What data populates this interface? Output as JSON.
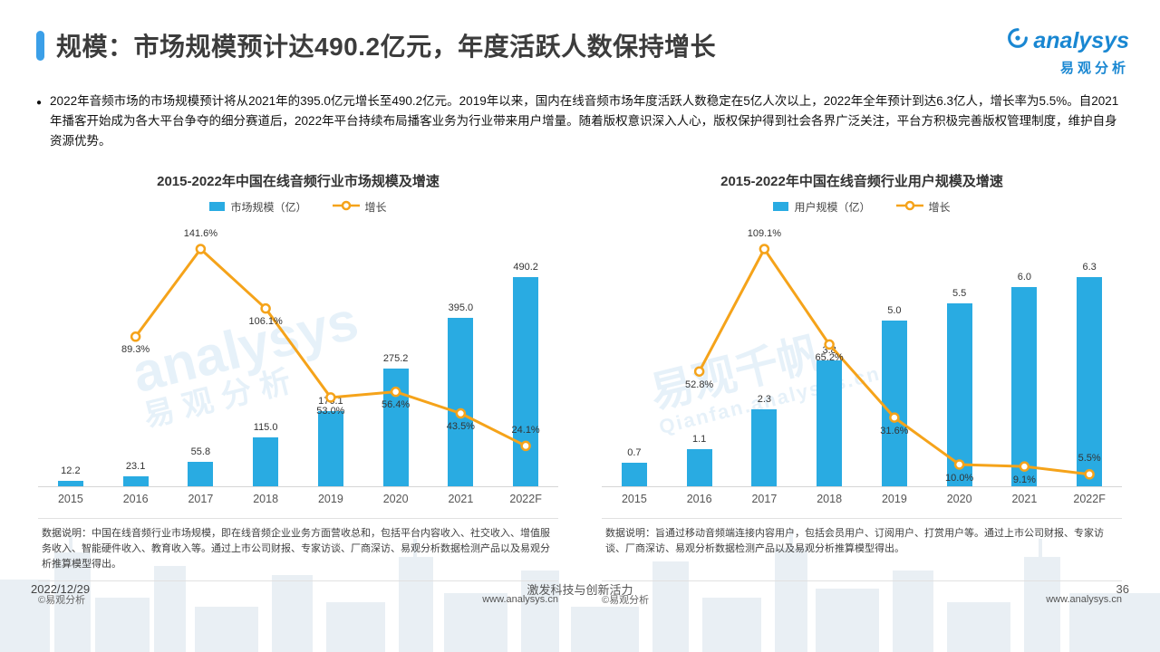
{
  "header": {
    "title": "规模：市场规模预计达490.2亿元，年度活跃人数保持增长",
    "logo_text": "analysys",
    "logo_cn": "易观分析"
  },
  "summary": {
    "bullet": "●",
    "text": "2022年音频市场的市场规模预计将从2021年的395.0亿元增长至490.2亿元。2019年以来，国内在线音频市场年度活跃人数稳定在5亿人次以上，2022年全年预计到达6.3亿人，增长率为5.5%。自2021年播客开始成为各大平台争夺的细分赛道后，2022年平台持续布局播客业务为行业带来用户增量。随着版权意识深入人心，版权保护得到社会各界广泛关注，平台方积极完善版权管理制度，维护自身资源优势。"
  },
  "chart_data": [
    {
      "type": "bar+line",
      "title": "2015-2022年中国在线音频行业市场规模及增速",
      "categories": [
        "2015",
        "2016",
        "2017",
        "2018",
        "2019",
        "2020",
        "2021",
        "2022F"
      ],
      "series": [
        {
          "name": "市场规模（亿）",
          "kind": "bar",
          "color": "#29abe2",
          "values": [
            12.2,
            23.1,
            55.8,
            115.0,
            176.1,
            275.2,
            395.0,
            490.2
          ],
          "labels": [
            "12.2",
            "23.1",
            "55.8",
            "115.0",
            "176.1",
            "275.2",
            "395.0",
            "490.2"
          ]
        },
        {
          "name": "增长",
          "kind": "line",
          "color": "#f5a31a",
          "unit": "%",
          "values": [
            null,
            89.3,
            141.6,
            106.1,
            53.0,
            56.4,
            43.5,
            24.1
          ],
          "labels": [
            "",
            "89.3%",
            "141.6%",
            "106.1%",
            "53.0%",
            "56.4%",
            "43.5%",
            "24.1%"
          ]
        }
      ],
      "legend_position": "top",
      "grid": false,
      "note": "数据说明：中国在线音频行业市场规模，即在线音频企业业务方面营收总和，包括平台内容收入、社交收入、增值服务收入、智能硬件收入、教育收入等。通过上市公司财报、专家访谈、厂商深访、易观分析数据检测产品以及易观分析推算模型得出。",
      "copyright": "©易观分析",
      "site": "www.analysys.cn"
    },
    {
      "type": "bar+line",
      "title": "2015-2022年中国在线音频行业用户规模及增速",
      "categories": [
        "2015",
        "2016",
        "2017",
        "2018",
        "2019",
        "2020",
        "2021",
        "2022F"
      ],
      "series": [
        {
          "name": "用户规模（亿）",
          "kind": "bar",
          "color": "#29abe2",
          "values": [
            0.7,
            1.1,
            2.3,
            3.8,
            5.0,
            5.5,
            6.0,
            6.3
          ],
          "labels": [
            "0.7",
            "1.1",
            "2.3",
            "3.8",
            "5.0",
            "5.5",
            "6.0",
            "6.3"
          ]
        },
        {
          "name": "增长",
          "kind": "line",
          "color": "#f5a31a",
          "unit": "%",
          "values": [
            null,
            52.8,
            109.1,
            65.2,
            31.6,
            10.0,
            9.1,
            5.5
          ],
          "labels": [
            "",
            "52.8%",
            "109.1%",
            "65.2%",
            "31.6%",
            "10.0%",
            "9.1%",
            "5.5%"
          ]
        }
      ],
      "legend_position": "top",
      "grid": false,
      "note": "数据说明：旨通过移动音频端连接内容用户，包括会员用户、订阅用户、打赏用户等。通过上市公司财报、专家访谈、厂商深访、易观分析数据检测产品以及易观分析推算模型得出。",
      "copyright": "©易观分析",
      "site": "www.analysys.cn"
    }
  ],
  "watermarks": {
    "left_text": "analysys",
    "left_sub": "易观分析",
    "right_text": "易观千帆",
    "right_sub": "Qianfan.analysys.cn"
  },
  "footer": {
    "date": "2022/12/29",
    "slogan": "激发科技与创新活力",
    "page": "36"
  }
}
